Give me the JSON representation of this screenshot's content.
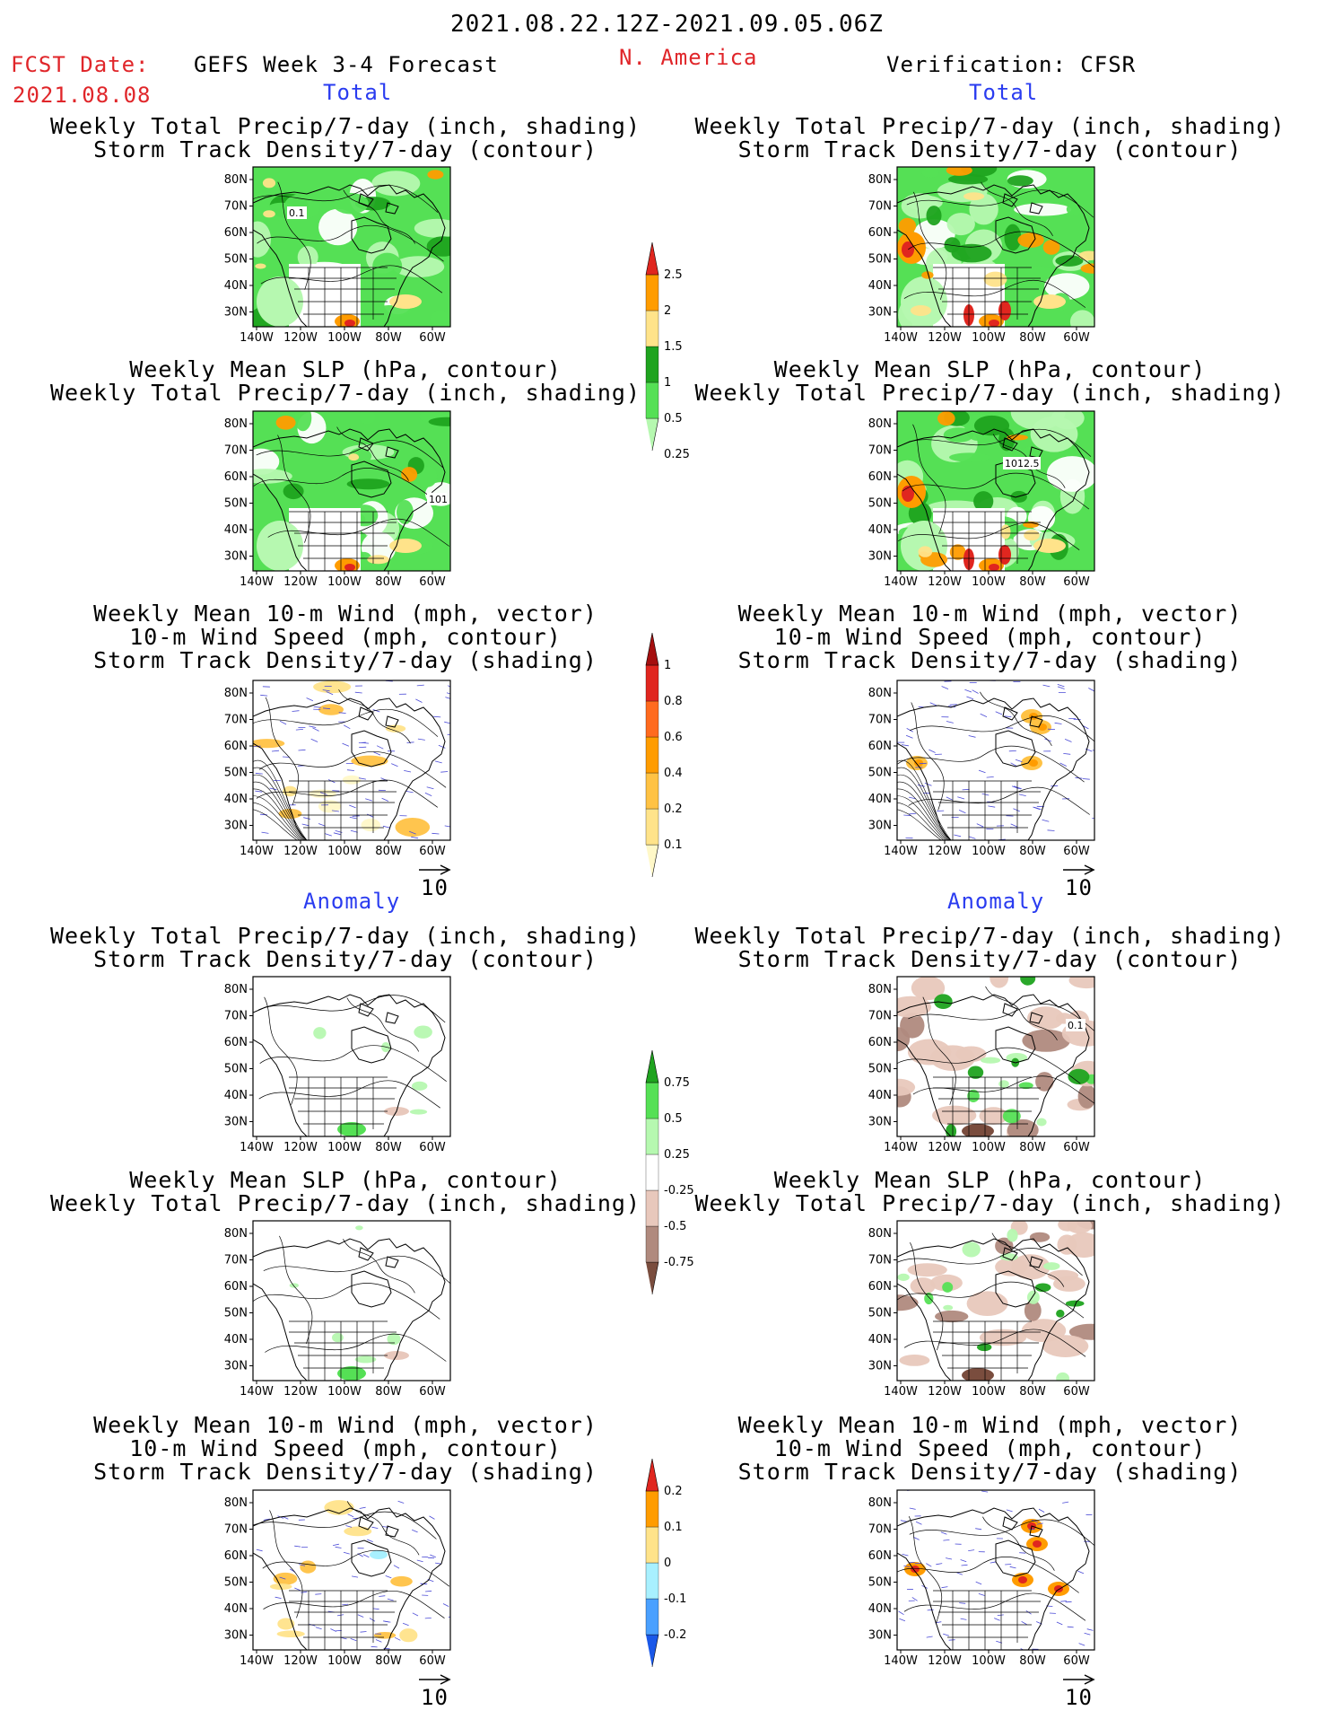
{
  "header": {
    "period": "2021.08.22.12Z-2021.09.05.06Z",
    "fcst_label": "FCST Date:",
    "fcst_date": "2021.08.08",
    "forecast": "GEFS Week 3-4 Forecast",
    "region": "N. America",
    "verification": "Verification: CFSR"
  },
  "sections": {
    "total": "Total",
    "anomaly": "Anomaly"
  },
  "panel_titles": {
    "precip": [
      "Weekly Total Precip/7-day (inch, shading)",
      "Storm Track Density/7-day (contour)"
    ],
    "slp": [
      "Weekly Mean SLP (hPa, contour)",
      "Weekly Total Precip/7-day (inch, shading)"
    ],
    "wind": [
      "Weekly Mean 10-m Wind (mph, vector)",
      "10-m Wind Speed (mph, contour)",
      "Storm Track Density/7-day (shading)"
    ]
  },
  "axes": {
    "lat": [
      "80N",
      "70N",
      "60N",
      "50N",
      "40N",
      "30N"
    ],
    "lon": [
      "140W",
      "120W",
      "100W",
      "80W",
      "60W"
    ]
  },
  "vector_ref": "10",
  "map_labels": {
    "fcst_precip": "0.1",
    "fcst_slp": "101",
    "obs_slp": "1012.5",
    "obs_anom": "0.1"
  },
  "colorbars": {
    "precip": {
      "labels": [
        "2.5",
        "2",
        "1.5",
        "1",
        "0.5",
        "0.25"
      ],
      "colors": [
        "#e0261f",
        "#ff9c00",
        "#ffe38a",
        "#1fa31f",
        "#55e055",
        "#b6f8b0"
      ]
    },
    "storm": {
      "labels": [
        "1",
        "0.8",
        "0.6",
        "0.4",
        "0.2",
        "0.1"
      ],
      "colors": [
        "#a50f0f",
        "#e0261f",
        "#ff6a1e",
        "#ff9c00",
        "#ffc244",
        "#ffe38a",
        "#fff8c8"
      ]
    },
    "precip_anom": {
      "labels": [
        "0.75",
        "0.5",
        "0.25",
        "-0.25",
        "-0.5",
        "-0.75"
      ],
      "colors": [
        "#1fa31f",
        "#55e055",
        "#b6f8b0",
        "#ffffff",
        "#e8c8bc",
        "#b08a7e",
        "#7a4d3e"
      ]
    },
    "storm_anom": {
      "labels": [
        "0.2",
        "0.1",
        "0",
        "-0.1",
        "-0.2"
      ],
      "colors": [
        "#e0261f",
        "#ff9c00",
        "#ffe38a",
        "#a8f0ff",
        "#4aa0ff",
        "#1a58e8"
      ]
    }
  }
}
